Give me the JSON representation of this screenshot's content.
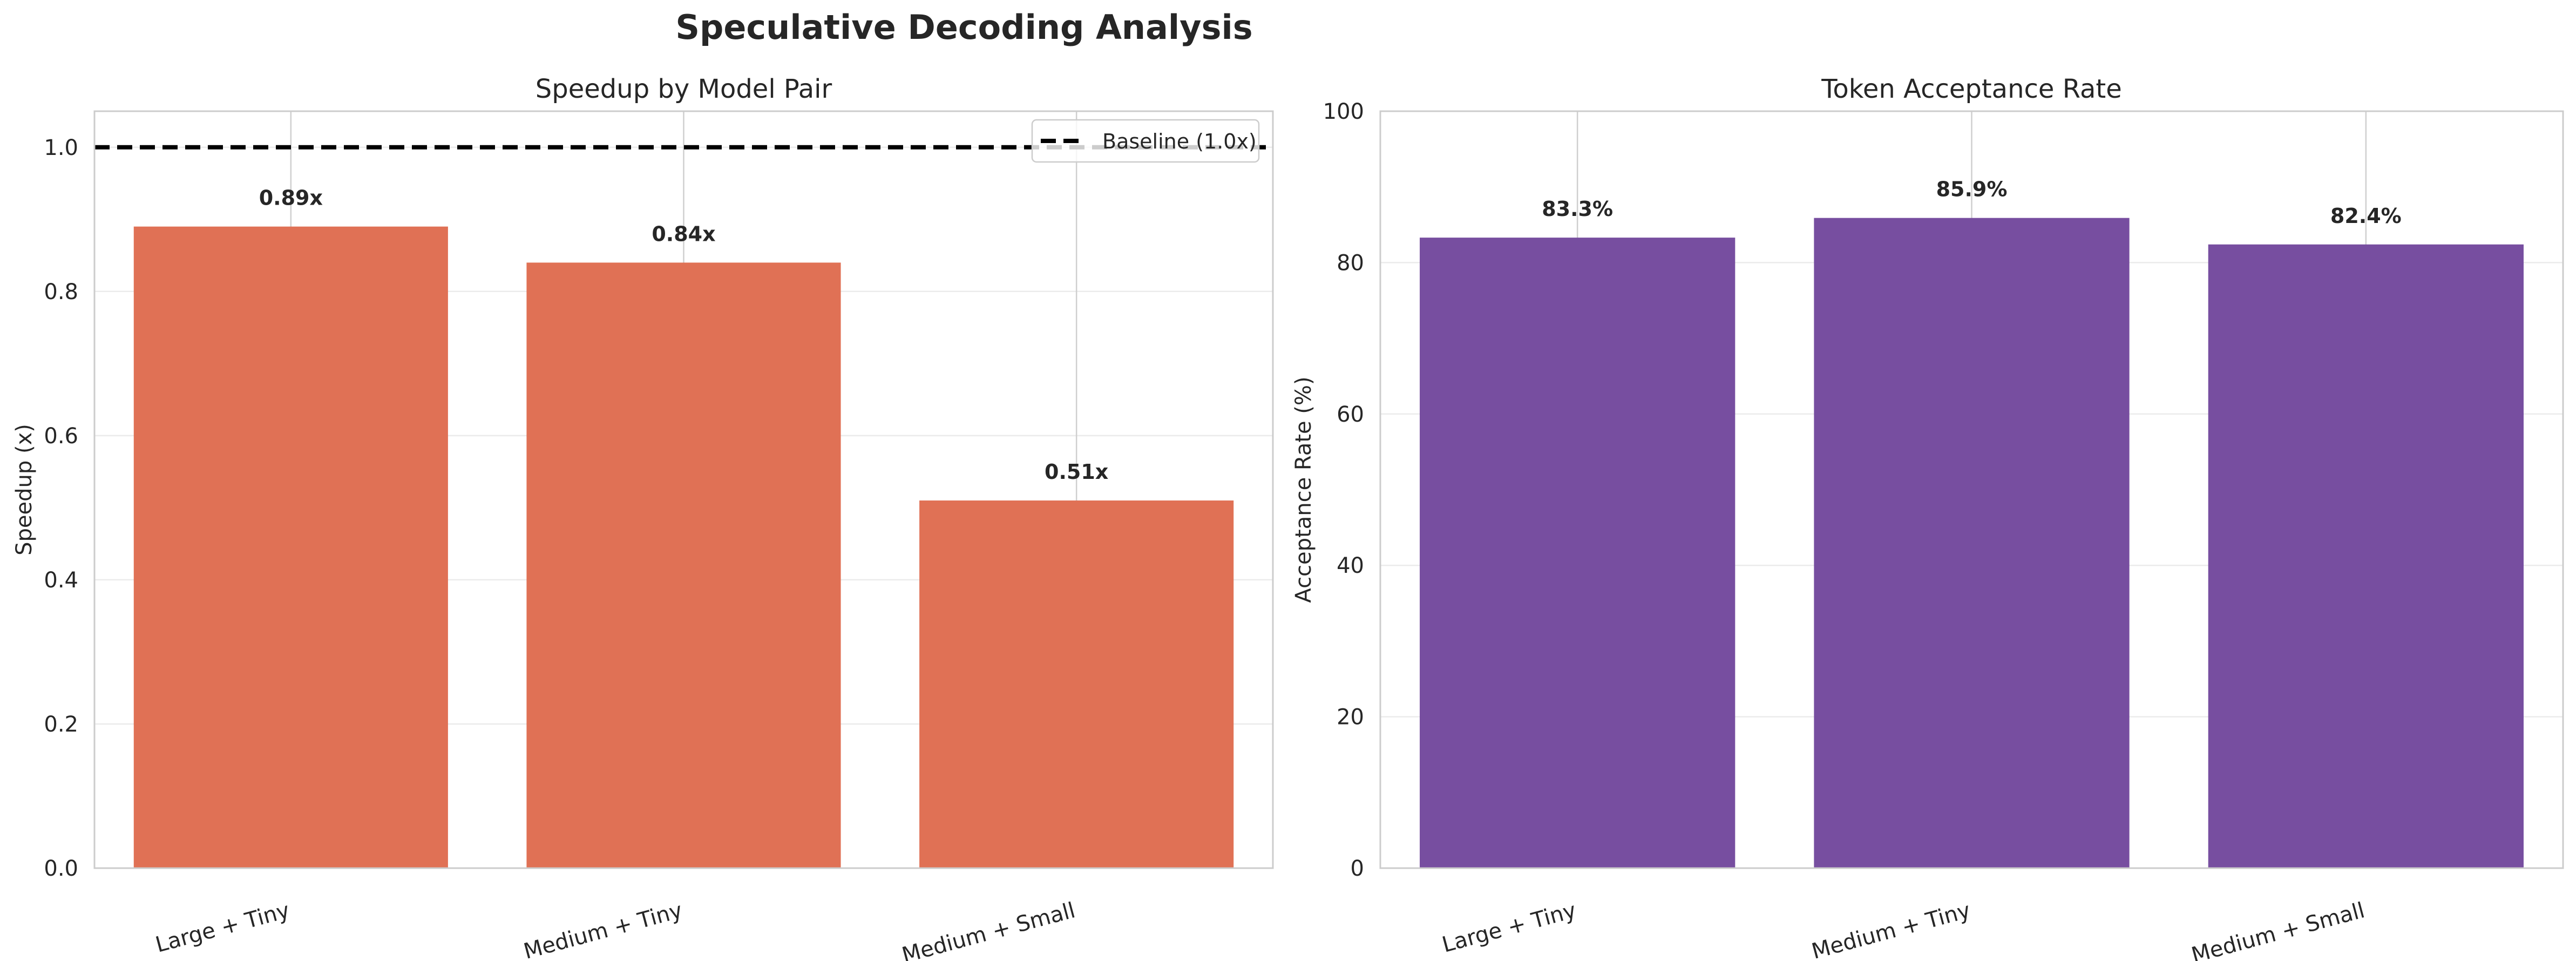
{
  "figure": {
    "title": "Speculative Decoding Analysis"
  },
  "chart_data": [
    {
      "type": "bar",
      "title": "Speedup by Model Pair",
      "xlabel": "",
      "ylabel": "Speedup (x)",
      "categories": [
        "Large + Tiny",
        "Medium + Tiny",
        "Medium + Small"
      ],
      "values": [
        0.89,
        0.84,
        0.51
      ],
      "data_labels": [
        "0.89x",
        "0.84x",
        "0.51x"
      ],
      "ylim": [
        0,
        1.05
      ],
      "yticks": [
        0.0,
        0.2,
        0.4,
        0.6,
        0.8,
        1.0
      ],
      "ytick_labels": [
        "0.0",
        "0.2",
        "0.4",
        "0.6",
        "0.8",
        "1.0"
      ],
      "bar_color": "#E07155",
      "reference_line": {
        "y": 1.0,
        "style": "dashed",
        "color": "#000000",
        "label": "Baseline (1.0x)"
      },
      "legend": {
        "placement": "top-right",
        "entries": [
          "Baseline (1.0x)"
        ]
      },
      "grid": true
    },
    {
      "type": "bar",
      "title": "Token Acceptance Rate",
      "xlabel": "",
      "ylabel": "Acceptance Rate (%)",
      "categories": [
        "Large + Tiny",
        "Medium + Tiny",
        "Medium + Small"
      ],
      "values": [
        83.3,
        85.9,
        82.4
      ],
      "data_labels": [
        "83.3%",
        "85.9%",
        "82.4%"
      ],
      "ylim": [
        0,
        100
      ],
      "yticks": [
        0,
        20,
        40,
        60,
        80,
        100
      ],
      "ytick_labels": [
        "0",
        "20",
        "40",
        "60",
        "80",
        "100"
      ],
      "bar_color": "#774EA0",
      "grid": true
    }
  ]
}
